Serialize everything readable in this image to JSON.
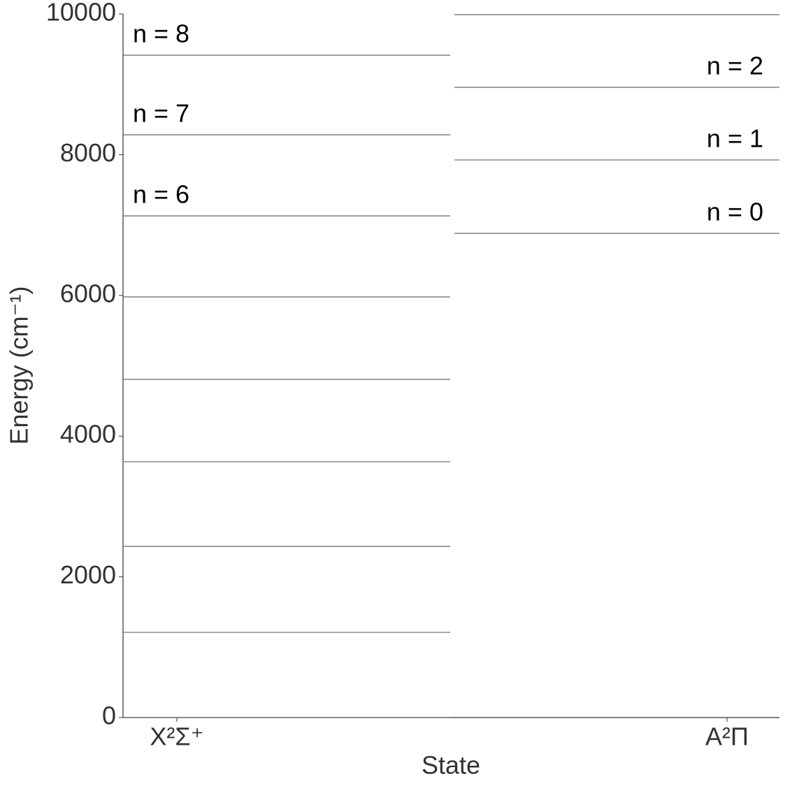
{
  "chart_data": {
    "type": "levels",
    "x_label": "State",
    "y_label": "Energy (cm⁻¹)",
    "categories": [
      "X²Σ⁺",
      "A²Π"
    ],
    "ylim": [
      0,
      10000
    ],
    "yticks": [
      0,
      2000,
      4000,
      6000,
      8000,
      10000
    ],
    "color": "#666666",
    "levels": [
      {
        "values": [
          0,
          1211,
          2433,
          3635,
          4806,
          5978,
          7130,
          8282,
          9414
        ],
        "labels": [
          null,
          null,
          null,
          null,
          null,
          null,
          "n = 6",
          "n = 7",
          "n = 8"
        ]
      },
      {
        "values": [
          6882,
          7925,
          8957,
          9990
        ],
        "labels": [
          "n = 0",
          "n = 1",
          "n = 2",
          null
        ]
      }
    ]
  }
}
